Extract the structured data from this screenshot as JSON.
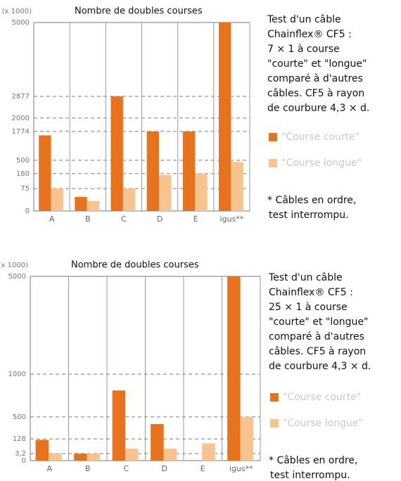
{
  "chart_data": [
    {
      "type": "bar",
      "title": "Nombre de doubles courses",
      "unit_label": "(x 1000)",
      "description": [
        "Test d'un câble",
        "Chainflex® CF5 :",
        "7 × 1 à course",
        "\"courte\" et \"longue\"",
        "comparé à d'autres",
        "câbles. CF5 à rayon",
        "de courbure 4,3 × d."
      ],
      "note": [
        "* Câbles en ordre,",
        "test interrompu."
      ],
      "categories": [
        "A",
        "B",
        "C",
        "D",
        "E",
        "igus**"
      ],
      "series": [
        {
          "name": "\"Course courte\"",
          "color": "#e8731f",
          "values": [
            1600,
            47,
            2877,
            1774,
            1774,
            5000
          ]
        },
        {
          "name": "\"Course longue\"",
          "color": "#f7c38f",
          "values": [
            75,
            33,
            75,
            170,
            180,
            460
          ]
        }
      ],
      "ylim": [
        0,
        5000
      ],
      "yticks": [
        0,
        75,
        180,
        500,
        1774,
        2000,
        2877,
        5000
      ],
      "yscale": "piecewise",
      "grid": true
    },
    {
      "type": "bar",
      "title": "Nombre de doubles courses",
      "unit_label": "(x 1000)",
      "description": [
        "Test d'un câble",
        "Chainflex® CF5 :",
        "25 × 1 à course",
        "\"courte\" et \"longue\"",
        "comparé à d'autres",
        "câbles. CF5 à rayon",
        "de courbure 4,3 × d."
      ],
      "note": [
        "* Câbles en ordre,",
        "test interrompu."
      ],
      "categories": [
        "A",
        "B",
        "C",
        "D",
        "E",
        "igus**"
      ],
      "series": [
        {
          "name": "\"Course courte\"",
          "color": "#e8731f",
          "values": [
            120,
            3.2,
            810,
            380,
            null,
            5000
          ]
        },
        {
          "name": "\"Course longue\"",
          "color": "#f7c38f",
          "values": [
            3.2,
            3.2,
            45,
            45,
            90,
            500
          ]
        }
      ],
      "ylim": [
        0,
        5000
      ],
      "yticks": [
        0,
        {
          "value": 3.2,
          "label": "3,2"
        },
        128,
        500,
        1000,
        5000
      ],
      "yscale": "piecewise",
      "grid": true
    }
  ]
}
